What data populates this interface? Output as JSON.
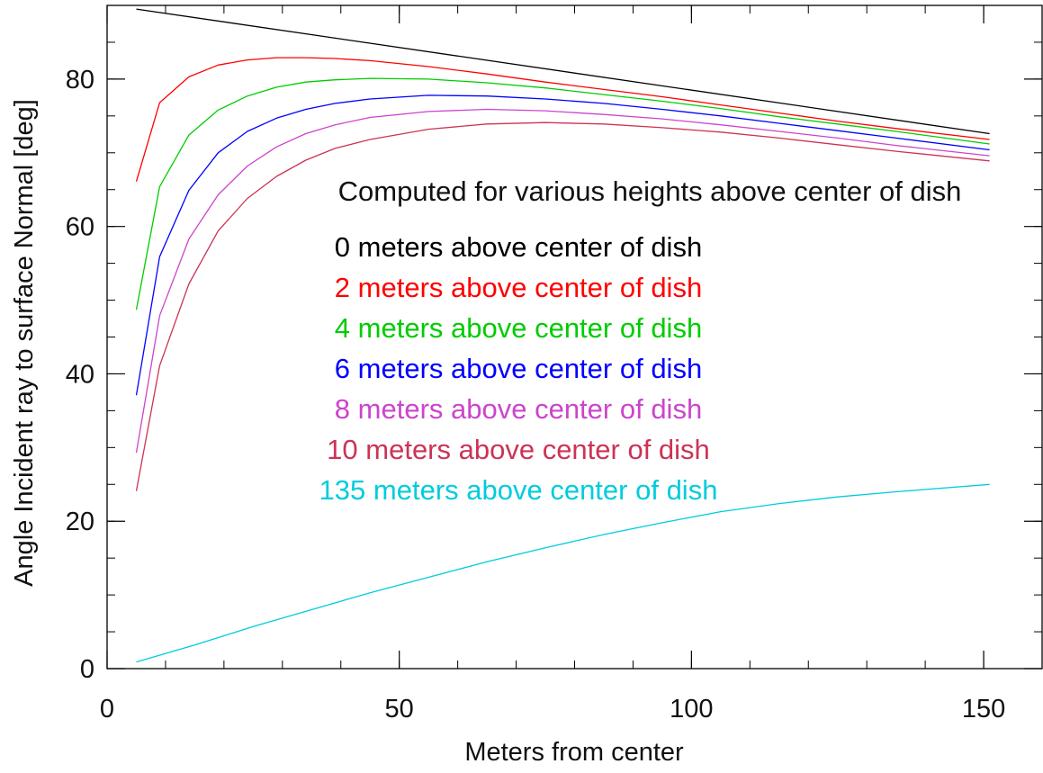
{
  "chart_data": {
    "type": "line",
    "title": "",
    "xlabel": "Meters from center",
    "ylabel": "Angle Incident ray to surface Normal [deg]",
    "xlim": [
      0,
      160
    ],
    "ylim": [
      0,
      90
    ],
    "xticks": [
      0,
      50,
      100,
      150
    ],
    "yticks": [
      0,
      20,
      40,
      60,
      80
    ],
    "x_minor_step": 10,
    "y_minor_step": 5,
    "grid": false,
    "annotation": "Computed for various heights above center of dish",
    "series": [
      {
        "name": "0 meters above center of dish",
        "color": "#000000",
        "x": [
          5,
          151
        ],
        "y": [
          89.5,
          72.6
        ]
      },
      {
        "name": "2 meters above center of dish",
        "color": "#ff0000",
        "x": [
          5,
          9,
          14,
          19,
          24,
          29,
          34,
          39,
          45,
          55,
          65,
          75,
          85,
          95,
          105,
          115,
          125,
          135,
          151
        ],
        "y": [
          66.1,
          76.8,
          80.3,
          81.9,
          82.6,
          82.9,
          82.9,
          82.8,
          82.5,
          81.7,
          80.7,
          79.6,
          78.6,
          77.6,
          76.5,
          75.4,
          74.3,
          73.3,
          71.8
        ]
      },
      {
        "name": "4 meters above center of dish",
        "color": "#00cc00",
        "x": [
          5,
          9,
          14,
          19,
          24,
          29,
          34,
          39,
          45,
          55,
          65,
          75,
          85,
          95,
          105,
          115,
          125,
          135,
          151
        ],
        "y": [
          48.7,
          65.4,
          72.4,
          75.8,
          77.7,
          78.9,
          79.6,
          79.9,
          80.1,
          80.0,
          79.5,
          78.8,
          77.9,
          77.0,
          76.0,
          74.9,
          73.9,
          72.9,
          71.2
        ]
      },
      {
        "name": "6 meters above center of dish",
        "color": "#0000ff",
        "x": [
          5,
          9,
          14,
          19,
          24,
          29,
          34,
          39,
          45,
          55,
          65,
          75,
          85,
          95,
          105,
          115,
          125,
          135,
          151
        ],
        "y": [
          37.1,
          55.9,
          64.9,
          70.0,
          72.9,
          74.7,
          75.9,
          76.7,
          77.3,
          77.8,
          77.7,
          77.3,
          76.7,
          75.9,
          75.0,
          74.0,
          73.0,
          72.0,
          70.4
        ]
      },
      {
        "name": "8 meters above center of dish",
        "color": "#cc44cc",
        "x": [
          5,
          9,
          14,
          19,
          24,
          29,
          34,
          39,
          45,
          55,
          65,
          75,
          85,
          95,
          105,
          115,
          125,
          135,
          151
        ],
        "y": [
          29.3,
          47.9,
          58.3,
          64.3,
          68.2,
          70.8,
          72.6,
          73.8,
          74.8,
          75.6,
          75.9,
          75.7,
          75.2,
          74.6,
          73.8,
          72.9,
          72.0,
          71.0,
          69.6
        ]
      },
      {
        "name": "10 meters above center of dish",
        "color": "#cc3355",
        "x": [
          5,
          9,
          14,
          19,
          24,
          29,
          34,
          39,
          45,
          55,
          65,
          75,
          85,
          95,
          105,
          115,
          125,
          135,
          151
        ],
        "y": [
          24.1,
          41.1,
          52.2,
          59.4,
          63.8,
          66.8,
          69.0,
          70.6,
          71.8,
          73.2,
          73.9,
          74.1,
          73.9,
          73.4,
          72.8,
          72.0,
          71.1,
          70.2,
          68.9
        ]
      },
      {
        "name": "135 meters above center of dish",
        "color": "#00ccdd",
        "x": [
          5,
          15,
          25,
          35,
          45,
          55,
          65,
          75,
          85,
          95,
          105,
          115,
          125,
          135,
          151
        ],
        "y": [
          0.9,
          3.2,
          5.7,
          8.0,
          10.3,
          12.4,
          14.5,
          16.4,
          18.2,
          19.8,
          21.3,
          22.4,
          23.3,
          24.0,
          25.0
        ]
      }
    ]
  }
}
